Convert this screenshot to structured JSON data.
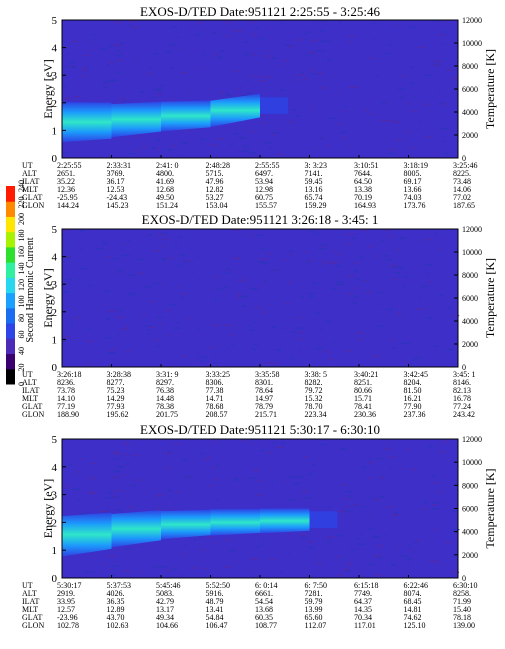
{
  "colorbar": {
    "label": "Second Harmonic Current",
    "ticks": [
      "0",
      "20",
      "40",
      "60",
      "80",
      "100",
      "120",
      "140",
      "160",
      "180",
      "200",
      "220",
      "240"
    ],
    "colors": [
      "#000000",
      "#3a0070",
      "#4b2bb8",
      "#2d44e6",
      "#1a6cf0",
      "#1aa0ff",
      "#27d6ef",
      "#2ef0a0",
      "#2de02d",
      "#a6f200",
      "#ffe600",
      "#ff8a00",
      "#ff1a00"
    ]
  },
  "panels": [
    {
      "title": "EXOS-D/TED   Date:951121  2:25:55 - 3:25:46",
      "ylabel_left": "Energy [eV]",
      "ylabel_right": "Temperature [K]",
      "row_labels": [
        "UT",
        "ALT",
        "ILAT",
        "MLT",
        "GLAT",
        "GLON"
      ],
      "columns": [
        [
          "2:25:55",
          "2651.",
          "35.22",
          "12.36",
          "-25.95",
          "144.24"
        ],
        [
          "2:33:31",
          "3769.",
          "36.17",
          "12.53",
          "-24.43",
          "145.23"
        ],
        [
          "2:41: 0",
          "4800.",
          "41.69",
          "12.68",
          "49.50",
          "151.24"
        ],
        [
          "2:48:28",
          "5715.",
          "47.96",
          "12.82",
          "53.27",
          "153.04"
        ],
        [
          "2:55:55",
          "6497.",
          "53.94",
          "12.98",
          "60.75",
          "155.57"
        ],
        [
          "3: 3:23",
          "7141.",
          "59.45",
          "13.16",
          "65.74",
          "159.29"
        ],
        [
          "3:10:51",
          "7644.",
          "64.50",
          "13.38",
          "70.19",
          "164.93"
        ],
        [
          "3:18:19",
          "8005.",
          "69.17",
          "13.66",
          "74.03",
          "173.76"
        ],
        [
          "3:25:46",
          "8225.",
          "73.48",
          "14.06",
          "77.02",
          "187.65"
        ]
      ]
    },
    {
      "title": "EXOS-D/TED   Date:951121  3:26:18 - 3:45: 1",
      "ylabel_left": "Energy [eV]",
      "ylabel_right": "Temperature [K]",
      "row_labels": [
        "UT",
        "ALT",
        "ILAT",
        "MLT",
        "GLAT",
        "GLON"
      ],
      "columns": [
        [
          "3:26:18",
          "8236.",
          "73.78",
          "14.10",
          "77.19",
          "188.90"
        ],
        [
          "3:28:38",
          "8277.",
          "75.23",
          "14.29",
          "77.93",
          "195.62"
        ],
        [
          "3:31: 9",
          "8297.",
          "76.38",
          "14.48",
          "78.38",
          "201.75"
        ],
        [
          "3:33:25",
          "8306.",
          "77.38",
          "14.71",
          "78.68",
          "208.57"
        ],
        [
          "3:35:58",
          "8301.",
          "78.64",
          "14.97",
          "78.79",
          "215.71"
        ],
        [
          "3:38: 5",
          "8282.",
          "79.72",
          "15.32",
          "78.70",
          "223.34"
        ],
        [
          "3:40:21",
          "8251.",
          "80.66",
          "15.71",
          "78.41",
          "230.36"
        ],
        [
          "3:42:45",
          "8204.",
          "81.50",
          "16.21",
          "77.90",
          "237.36"
        ],
        [
          "3:45: 1",
          "8146.",
          "82.13",
          "16.78",
          "77.24",
          "243.42"
        ]
      ]
    },
    {
      "title": "EXOS-D/TED   Date:951121  5:30:17 - 6:30:10",
      "ylabel_left": "Energy [eV]",
      "ylabel_right": "Temperature [K]",
      "row_labels": [
        "UT",
        "ALT",
        "ILAT",
        "MLT",
        "GLAT",
        "GLON"
      ],
      "columns": [
        [
          "5:30:17",
          "2919.",
          "33.95",
          "12.57",
          "-23.96",
          "102.78"
        ],
        [
          "5:37:53",
          "4026.",
          "36.35",
          "12.89",
          "43.70",
          "102.63"
        ],
        [
          "5:45:46",
          "5083.",
          "42.79",
          "13.17",
          "49.34",
          "104.66"
        ],
        [
          "5:52:50",
          "5916.",
          "48.79",
          "13.41",
          "54.84",
          "106.47"
        ],
        [
          "6: 0:14",
          "6661.",
          "54.54",
          "13.68",
          "60.35",
          "108.77"
        ],
        [
          "6: 7:50",
          "7281.",
          "59.79",
          "13.99",
          "65.60",
          "112.07"
        ],
        [
          "6:15:18",
          "7749.",
          "64.37",
          "14.35",
          "70.34",
          "117.01"
        ],
        [
          "6:22:46",
          "8074.",
          "68.45",
          "14.81",
          "74.62",
          "125.10"
        ],
        [
          "6:30:10",
          "8258.",
          "71.99",
          "15.40",
          "78.18",
          "139.00"
        ]
      ]
    }
  ],
  "chart_data": [
    {
      "type": "heatmap",
      "title": "EXOS-D/TED   Date:951121  2:25:55 - 3:25:46",
      "xlabel": "UT",
      "ylabel": "Energy [eV]",
      "y2label": "Temperature [K]",
      "ylim": [
        0,
        5
      ],
      "y2lim": [
        0,
        12000
      ],
      "yticks": [
        "0",
        "1",
        "2",
        "3",
        "4",
        "5"
      ],
      "y2ticks": [
        "0",
        "2000",
        "4000",
        "6000",
        "8000",
        "10000",
        "12000"
      ],
      "colorbar": {
        "label": "Second Harmonic Current",
        "range": [
          0,
          240
        ]
      },
      "intensity_band_ev": {
        "ut": [
          "2:25:55",
          "2:33:31",
          "2:41: 0",
          "2:48:28",
          "2:55:55",
          "3: 3:23",
          "3:10:51",
          "3:18:19",
          "3:25:46"
        ],
        "center": [
          1.3,
          1.35,
          1.5,
          1.6,
          1.9,
          null,
          null,
          null,
          null
        ],
        "peak_value": [
          160,
          140,
          130,
          120,
          110,
          100,
          100,
          100,
          100
        ]
      }
    },
    {
      "type": "heatmap",
      "title": "EXOS-D/TED   Date:951121  3:26:18 - 3:45: 1",
      "xlabel": "UT",
      "ylabel": "Energy [eV]",
      "y2label": "Temperature [K]",
      "ylim": [
        0,
        5
      ],
      "y2lim": [
        0,
        12000
      ],
      "yticks": [
        "0",
        "1",
        "2",
        "3",
        "4",
        "5"
      ],
      "y2ticks": [
        "0",
        "2000",
        "4000",
        "6000",
        "8000",
        "10000",
        "12000"
      ],
      "colorbar": {
        "label": "Second Harmonic Current",
        "range": [
          0,
          240
        ]
      },
      "intensity_band_ev": {
        "ut": [
          "3:26:18",
          "3:28:38",
          "3:31: 9",
          "3:33:25",
          "3:35:58",
          "3:38: 5",
          "3:40:21",
          "3:42:45",
          "3:45: 1"
        ],
        "center": [
          null,
          null,
          null,
          null,
          null,
          null,
          null,
          null,
          null
        ],
        "peak_value": [
          100,
          100,
          100,
          100,
          100,
          100,
          100,
          100,
          100
        ]
      }
    },
    {
      "type": "heatmap",
      "title": "EXOS-D/TED   Date:951121  5:30:17 - 6:30:10",
      "xlabel": "UT",
      "ylabel": "Energy [eV]",
      "y2label": "Temperature [K]",
      "ylim": [
        0,
        5
      ],
      "y2lim": [
        0,
        12000
      ],
      "yticks": [
        "0",
        "1",
        "2",
        "3",
        "4",
        "5"
      ],
      "y2ticks": [
        "0",
        "2000",
        "4000",
        "6000",
        "8000",
        "10000",
        "12000"
      ],
      "colorbar": {
        "label": "Second Harmonic Current",
        "range": [
          0,
          240
        ]
      },
      "intensity_band_ev": {
        "ut": [
          "5:30:17",
          "5:37:53",
          "5:45:46",
          "5:52:50",
          "6: 0:14",
          "6: 7:50",
          "6:15:18",
          "6:22:46",
          "6:30:10"
        ],
        "center": [
          1.5,
          1.7,
          1.9,
          2.0,
          2.05,
          2.1,
          null,
          null,
          null
        ],
        "peak_value": [
          160,
          140,
          125,
          120,
          115,
          110,
          100,
          100,
          100
        ]
      }
    }
  ]
}
